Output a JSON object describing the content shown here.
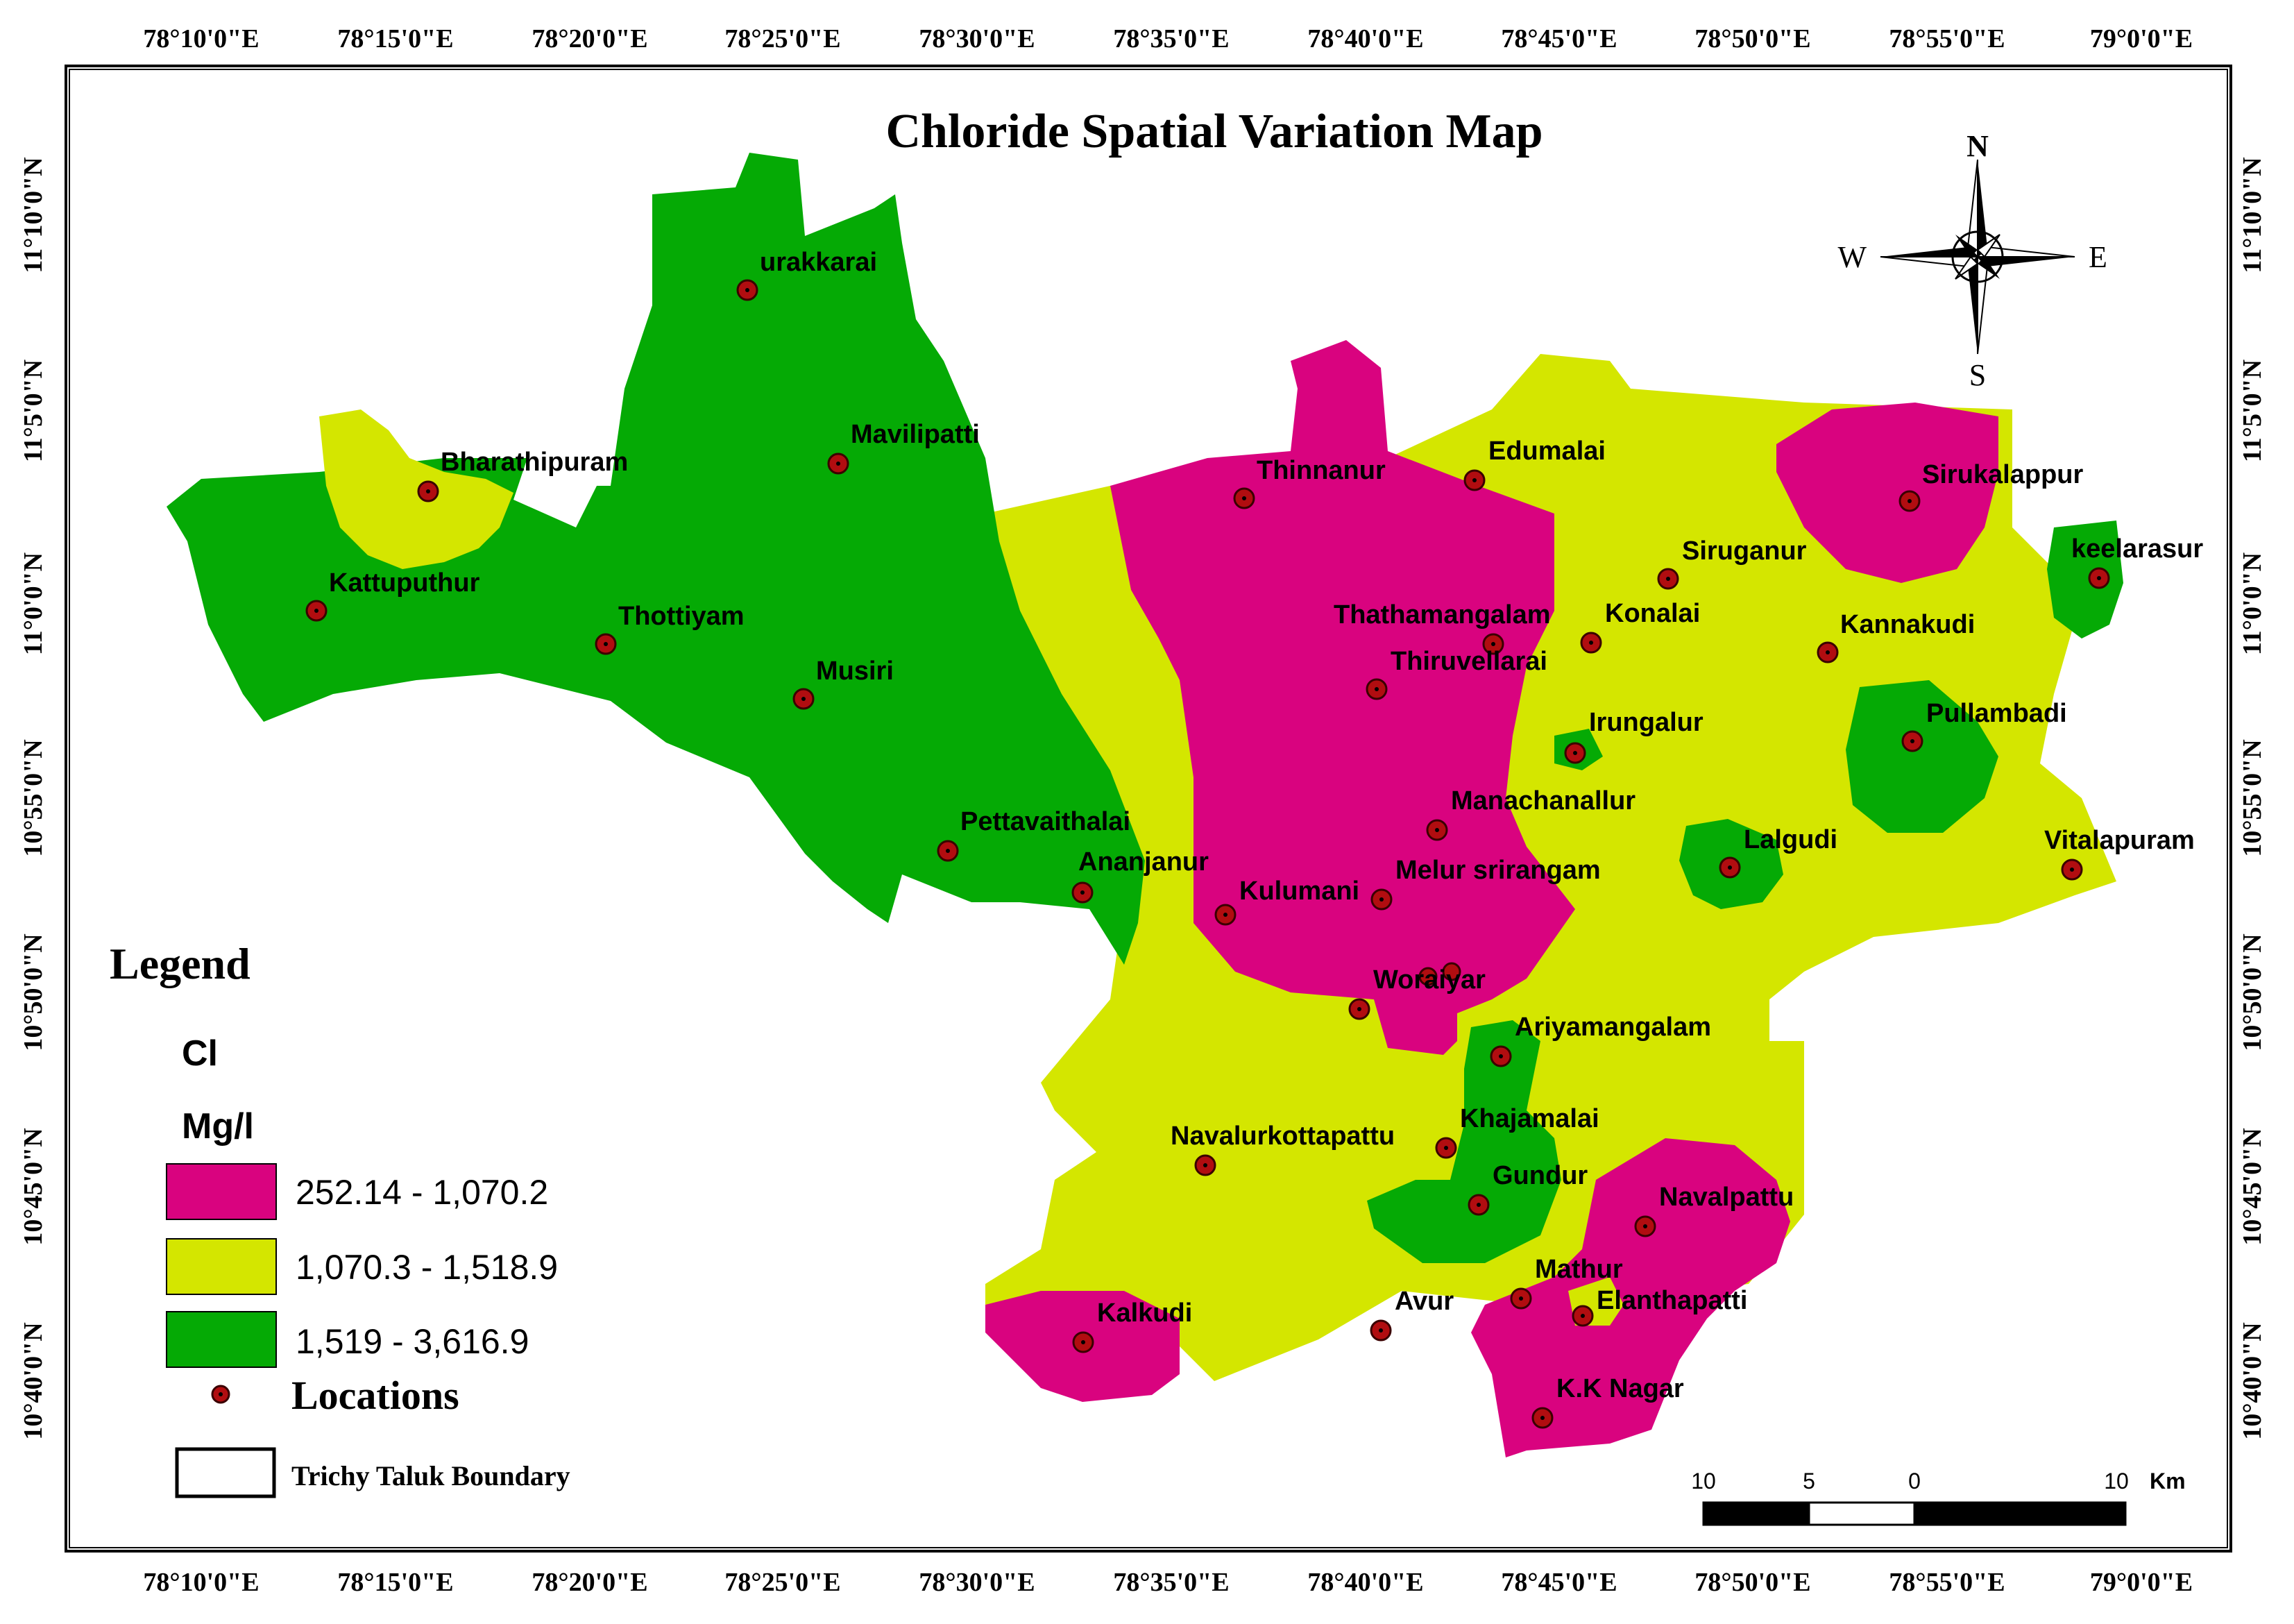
{
  "title": "Chloride Spatial Variation Map",
  "top_ticks": [
    "78°10'0\"E",
    "78°15'0\"E",
    "78°20'0\"E",
    "78°25'0\"E",
    "78°30'0\"E",
    "78°35'0\"E",
    "78°40'0\"E",
    "78°45'0\"E",
    "78°50'0\"E",
    "78°55'0\"E",
    "79°0'0\"E"
  ],
  "bottom_ticks": [
    "78°10'0\"E",
    "78°15'0\"E",
    "78°20'0\"E",
    "78°25'0\"E",
    "78°30'0\"E",
    "78°35'0\"E",
    "78°40'0\"E",
    "78°45'0\"E",
    "78°50'0\"E",
    "78°55'0\"E",
    "79°0'0\"E"
  ],
  "lat_ticks": [
    "11°10'0\"N",
    "11°5'0\"N",
    "11°0'0\"N",
    "10°55'0\"N",
    "10°50'0\"N",
    "10°45'0\"N",
    "10°40'0\"N"
  ],
  "colors": {
    "low": "#d9037f",
    "mid": "#d4e600",
    "high": "#05aa05",
    "point": "#b10d10"
  },
  "compass": {
    "n": "N",
    "s": "S",
    "e": "E",
    "w": "W"
  },
  "legend": {
    "heading": "Legend",
    "param": "Cl",
    "unit": "Mg/l",
    "classes": [
      {
        "label": "252.14 - 1,070.2",
        "color": "#d9037f"
      },
      {
        "label": "1,070.3 - 1,518.9",
        "color": "#d4e600"
      },
      {
        "label": "1,519 - 3,616.9",
        "color": "#05aa05"
      }
    ],
    "locations_label": "Locations",
    "boundary_label": "Trichy Taluk Boundary"
  },
  "scale": {
    "labels": [
      "10",
      "5",
      "0",
      "10"
    ],
    "unit": "Km"
  },
  "locations": [
    "urakkarai",
    "Mavilipatti",
    "Bharathipuram",
    "Kattuputhur",
    "Thottiyam",
    "Musiri",
    "Pettavaithalai",
    "Ananjanur",
    "Kulumani",
    "Thinnanur",
    "Edumalai",
    "Thathamangalam",
    "Konalai",
    "Thiruvellarai",
    "Siruganur",
    "Sirukalappur",
    "keelarasur",
    "Kannakudi",
    "Irungalur",
    "Pullambadi",
    "Manachanallur",
    "Lalgudi",
    "Vitalapuram",
    "Melur srirangam",
    "Woraiyar",
    "Ariyamangalam",
    "Khajamalai",
    "Navalurkottapattu",
    "Gundur",
    "Navalpattu",
    "Mathur",
    "Elanthapatti",
    "Avur",
    "Kalkudi",
    "K.K Nagar"
  ]
}
